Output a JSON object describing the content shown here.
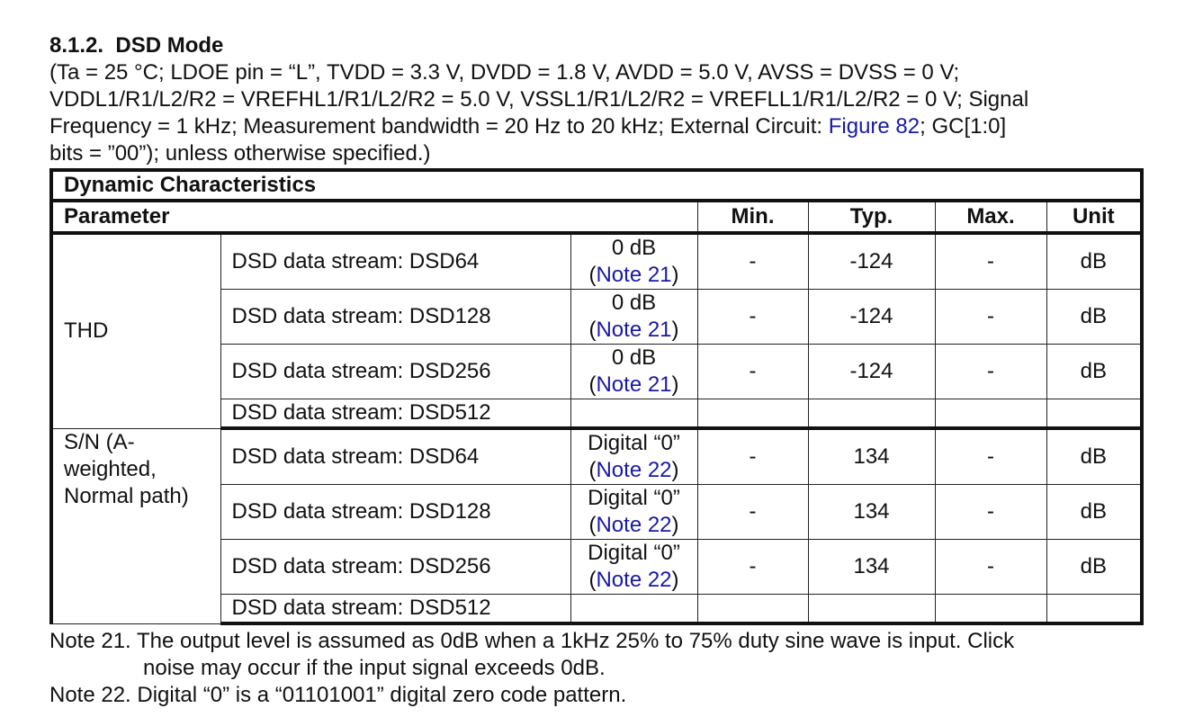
{
  "section": {
    "number": "8.1.2.",
    "title": "DSD Mode"
  },
  "conditions": {
    "line1": "(Ta = 25 °C; LDOE pin = “L”, TVDD = 3.3 V, DVDD = 1.8 V, AVDD = 5.0 V, AVSS = DVSS = 0 V;",
    "line2": "VDDL1/R1/L2/R2 = VREFHL1/R1/L2/R2 = 5.0 V, VSSL1/R1/L2/R2 = VREFLL1/R1/L2/R2 = 0 V; Signal",
    "line3_pre": "Frequency = 1 kHz; Measurement bandwidth = 20 Hz to 20 kHz; External Circuit: ",
    "line3_link": "Figure 82",
    "line3_post": "; GC[1:0]",
    "line4": "bits = ”00”); unless otherwise specified.)"
  },
  "table": {
    "caption": "Dynamic Characteristics",
    "headers": {
      "parameter": "Parameter",
      "min": "Min.",
      "typ": "Typ.",
      "max": "Max.",
      "unit": "Unit"
    },
    "thd": {
      "label": "THD",
      "rows": [
        {
          "stream": "DSD data stream: DSD64",
          "cond": "0 dB",
          "note_open": "(",
          "note": "Note 21",
          "note_close": ")",
          "min": "-",
          "typ": "-124",
          "max": "-",
          "unit": "dB"
        },
        {
          "stream": "DSD data stream: DSD128",
          "cond": "0 dB",
          "note_open": "(",
          "note": "Note 21",
          "note_close": ")",
          "min": "-",
          "typ": "-124",
          "max": "-",
          "unit": "dB"
        },
        {
          "stream": "DSD data stream: DSD256",
          "cond": "0 dB",
          "note_open": "(",
          "note": "Note 21",
          "note_close": ")",
          "min": "-",
          "typ": "-124",
          "max": "-",
          "unit": "dB"
        },
        {
          "stream": "DSD data stream: DSD512"
        }
      ]
    },
    "sn": {
      "label_l1": "S/N (A-",
      "label_l2": "weighted,",
      "label_l3": "Normal path)",
      "rows": [
        {
          "stream": "DSD data stream: DSD64",
          "cond": "Digital “0”",
          "note_open": "(",
          "note": "Note 22",
          "note_close": ")",
          "min": "-",
          "typ": "134",
          "max": "-",
          "unit": "dB"
        },
        {
          "stream": "DSD data stream: DSD128",
          "cond": "Digital “0”",
          "note_open": "(",
          "note": "Note 22",
          "note_close": ")",
          "min": "-",
          "typ": "134",
          "max": "-",
          "unit": "dB"
        },
        {
          "stream": "DSD data stream: DSD256",
          "cond": "Digital “0”",
          "note_open": "(",
          "note": "Note 22",
          "note_close": ")",
          "min": "-",
          "typ": "134",
          "max": "-",
          "unit": "dB"
        },
        {
          "stream": "DSD data stream: DSD512"
        }
      ]
    }
  },
  "notes": {
    "note21_l1": "Note 21. The output level is assumed as 0dB when a 1kHz 25% to 75% duty sine wave is input. Click",
    "note21_l2": "noise may occur if the input signal exceeds 0dB.",
    "note22": "Note 22. Digital “0” is a “01101001” digital zero code pattern."
  },
  "colors": {
    "link": "#1a1aa6",
    "text": "#111111",
    "border": "#111111"
  }
}
